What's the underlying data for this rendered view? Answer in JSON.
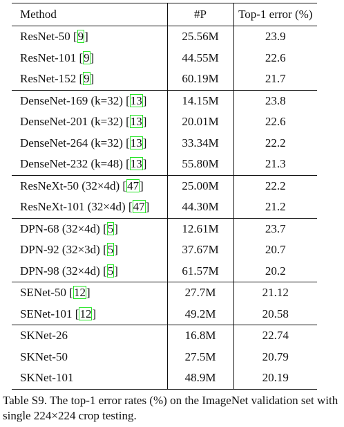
{
  "table": {
    "headers": [
      "Method",
      "#P",
      "Top-1 error (%)"
    ],
    "groups": [
      [
        {
          "method": "ResNet-50",
          "ref": "9",
          "params": "25.56M",
          "error": "23.9"
        },
        {
          "method": "ResNet-101",
          "ref": "9",
          "params": "44.55M",
          "error": "22.6"
        },
        {
          "method": "ResNet-152",
          "ref": "9",
          "params": "60.19M",
          "error": "21.7"
        }
      ],
      [
        {
          "method": "DenseNet-169 (k=32)",
          "ref": "13",
          "params": "14.15M",
          "error": "23.8"
        },
        {
          "method": "DenseNet-201 (k=32)",
          "ref": "13",
          "params": "20.01M",
          "error": "22.6"
        },
        {
          "method": "DenseNet-264 (k=32)",
          "ref": "13",
          "params": "33.34M",
          "error": "22.2"
        },
        {
          "method": "DenseNet-232 (k=48)",
          "ref": "13",
          "params": "55.80M",
          "error": "21.3"
        }
      ],
      [
        {
          "method": "ResNeXt-50 (32×4d)",
          "ref": "47",
          "params": "25.00M",
          "error": "22.2"
        },
        {
          "method": "ResNeXt-101 (32×4d)",
          "ref": "47",
          "params": "44.30M",
          "error": "21.2"
        }
      ],
      [
        {
          "method": "DPN-68 (32×4d)",
          "ref": "5",
          "params": "12.61M",
          "error": "23.7"
        },
        {
          "method": "DPN-92 (32×3d)",
          "ref": "5",
          "params": "37.67M",
          "error": "20.7"
        },
        {
          "method": "DPN-98 (32×4d)",
          "ref": "5",
          "params": "61.57M",
          "error": "20.2"
        }
      ],
      [
        {
          "method": "SENet-50",
          "ref": "12",
          "params": "27.7M",
          "error": "21.12"
        },
        {
          "method": "SENet-101",
          "ref": "12",
          "params": "49.2M",
          "error": "20.58"
        }
      ],
      [
        {
          "method": "SKNet-26",
          "ref": "",
          "params": "16.8M",
          "error": "22.74"
        },
        {
          "method": "SKNet-50",
          "ref": "",
          "params": "27.5M",
          "error": "20.79"
        },
        {
          "method": "SKNet-101",
          "ref": "",
          "params": "48.9M",
          "error": "20.19"
        }
      ]
    ]
  },
  "caption": "Table S9. The top-1 error rates (%) on the ImageNet validation set with single 224×224 crop testing."
}
